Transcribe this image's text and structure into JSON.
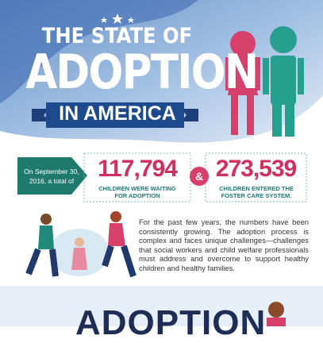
{
  "header": {
    "title_line1": "THE STATE OF",
    "title_line2": "ADOPTION",
    "title_line3": "IN AMERICA"
  },
  "stats": {
    "intro": "On September 30, 2016, a total of",
    "items": [
      {
        "number": "117,794",
        "caption": "CHILDREN WERE WAITING FOR ADOPTION"
      },
      {
        "number": "273,539",
        "caption": "CHILDREN ENTERED THE FOSTER CARE SYSTEM."
      }
    ],
    "connector": "&"
  },
  "body": {
    "paragraph": "For the past few years, the numbers have been consistently growing. The adoption process is complex and faces unique challenges—challenges that social workers and child welfare professionals must address and overcome to support healthy children and healthy families."
  },
  "footer": {
    "heading": "ADOPTION"
  }
}
